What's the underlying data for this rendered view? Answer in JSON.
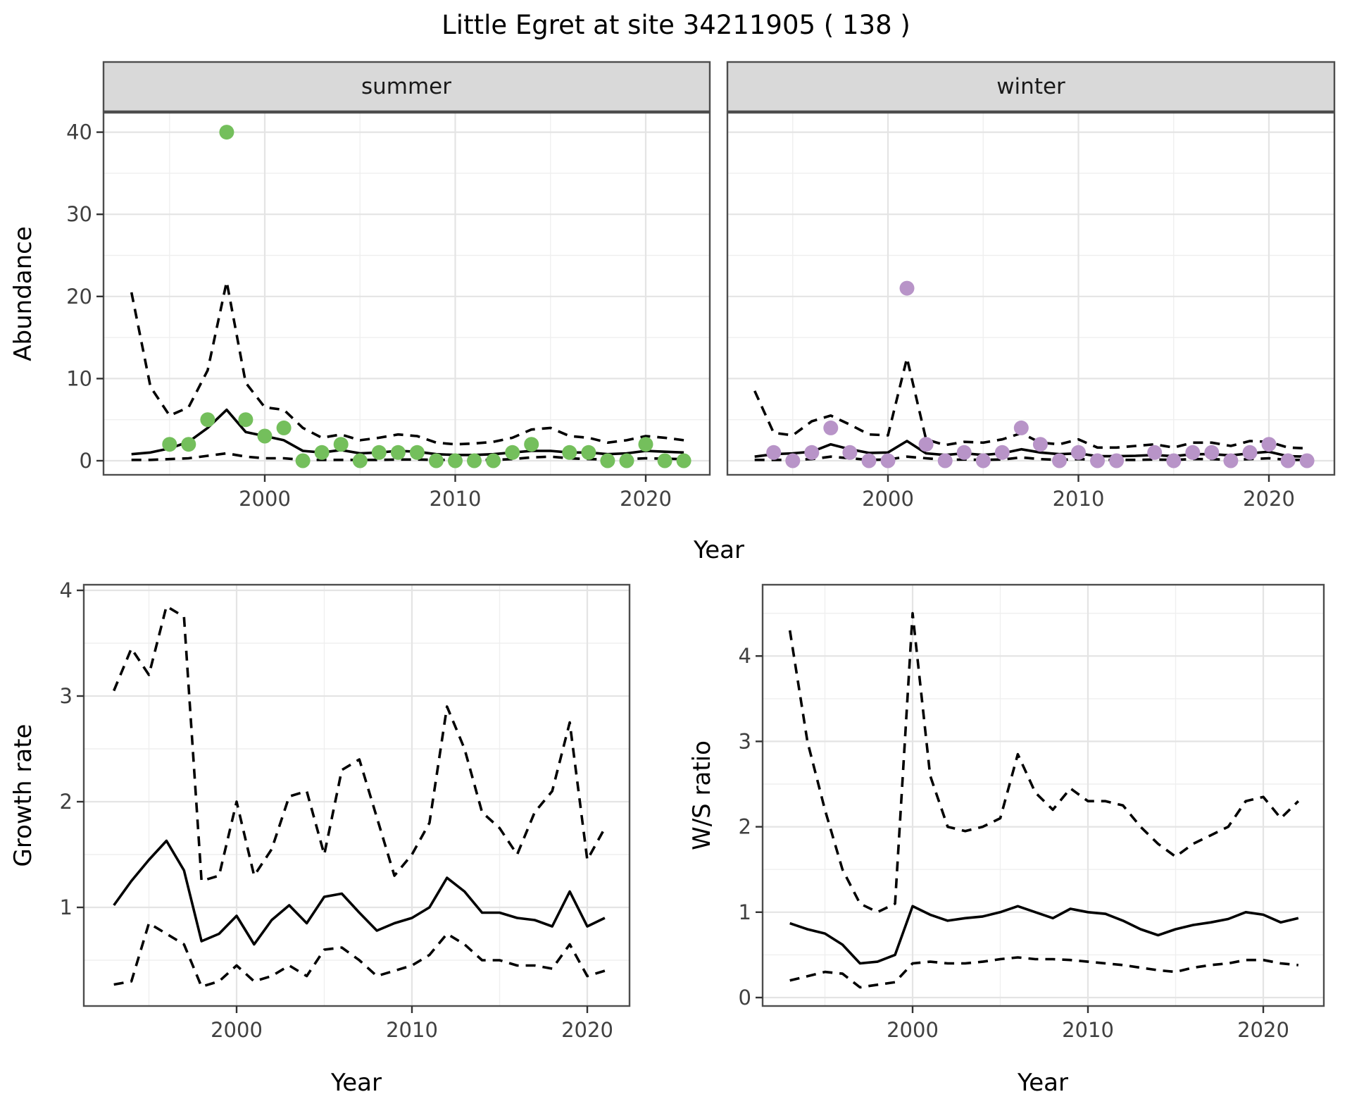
{
  "title": "Little Egret at site 34211905 ( 138 )",
  "figure": {
    "background": "#ffffff",
    "grid": true,
    "legend": "none"
  },
  "colors": {
    "summer_point": "#74bf5c",
    "winter_point": "#b894c8",
    "line": "#000000",
    "strip_background": "#d9d9d9",
    "panel_border": "#4d4d4d",
    "grid": "#e4e4e4"
  },
  "chart_data": [
    {
      "id": "abundance_summer",
      "type": "scatter",
      "facet": "summer",
      "xlabel": "Year",
      "ylabel": "Abundance",
      "x_ticks": [
        2000,
        2010,
        2020
      ],
      "x_minor": [
        1995,
        2005,
        2015
      ],
      "y_ticks": [
        0,
        10,
        20,
        30,
        40
      ],
      "y_minor": [
        5,
        15,
        25,
        35
      ],
      "xlim": [
        1991.5,
        2023.5
      ],
      "ylim": [
        -1.7,
        42.4
      ],
      "points": {
        "x": [
          1995,
          1996,
          1997,
          1998,
          1999,
          2000,
          2001,
          2002,
          2003,
          2004,
          2005,
          2006,
          2007,
          2008,
          2009,
          2010,
          2011,
          2012,
          2013,
          2014,
          2016,
          2017,
          2018,
          2019,
          2020,
          2021,
          2022
        ],
        "y": [
          2,
          2,
          5,
          40,
          5,
          3,
          4,
          0,
          1,
          2,
          0,
          1,
          1,
          1,
          0,
          0,
          0,
          0,
          1,
          2,
          1,
          1,
          0,
          0,
          2,
          0,
          0
        ]
      },
      "mean_line": {
        "x": [
          1993,
          1994,
          1995,
          1996,
          1997,
          1998,
          1999,
          2000,
          2001,
          2002,
          2003,
          2004,
          2005,
          2006,
          2007,
          2008,
          2009,
          2010,
          2011,
          2012,
          2013,
          2014,
          2015,
          2016,
          2017,
          2018,
          2019,
          2020,
          2021,
          2022
        ],
        "y": [
          0.8,
          1.0,
          1.5,
          2.3,
          4.0,
          6.2,
          3.5,
          3.0,
          2.5,
          1.2,
          1.0,
          1.3,
          0.9,
          1.0,
          1.2,
          1.1,
          0.8,
          0.7,
          0.7,
          0.8,
          1.0,
          1.2,
          1.2,
          1.0,
          1.0,
          0.8,
          0.9,
          1.2,
          1.1,
          1.0
        ]
      },
      "upper_ci": {
        "x": [
          1993,
          1994,
          1995,
          1996,
          1997,
          1998,
          1999,
          2000,
          2001,
          2002,
          2003,
          2004,
          2005,
          2006,
          2007,
          2008,
          2009,
          2010,
          2011,
          2012,
          2013,
          2014,
          2015,
          2016,
          2017,
          2018,
          2019,
          2020,
          2021,
          2022
        ],
        "y": [
          20.5,
          9.0,
          5.5,
          6.5,
          11,
          21.8,
          9.5,
          6.5,
          6.2,
          4.0,
          2.8,
          3.2,
          2.5,
          2.8,
          3.2,
          3.0,
          2.2,
          2.0,
          2.1,
          2.3,
          2.8,
          3.8,
          4.0,
          3.0,
          2.8,
          2.2,
          2.5,
          3.0,
          2.8,
          2.5
        ]
      },
      "lower_ci": {
        "x": [
          1993,
          1994,
          1995,
          1996,
          1997,
          1998,
          1999,
          2000,
          2001,
          2002,
          2003,
          2004,
          2005,
          2006,
          2007,
          2008,
          2009,
          2010,
          2011,
          2012,
          2013,
          2014,
          2015,
          2016,
          2017,
          2018,
          2019,
          2020,
          2021,
          2022
        ],
        "y": [
          0.1,
          0.1,
          0.2,
          0.3,
          0.6,
          0.9,
          0.5,
          0.3,
          0.3,
          0.1,
          0.1,
          0.1,
          0.1,
          0.1,
          0.15,
          0.15,
          0.1,
          0.1,
          0.1,
          0.1,
          0.2,
          0.4,
          0.5,
          0.3,
          0.2,
          0.15,
          0.2,
          0.3,
          0.25,
          0.2
        ]
      }
    },
    {
      "id": "abundance_winter",
      "type": "scatter",
      "facet": "winter",
      "xlabel": "Year",
      "ylabel": "Abundance",
      "x_ticks": [
        2000,
        2010,
        2020
      ],
      "x_minor": [
        1995,
        2005,
        2015
      ],
      "y_ticks": [
        0,
        10,
        20,
        30,
        40
      ],
      "y_minor": [
        5,
        15,
        25,
        35
      ],
      "xlim": [
        1991.5,
        2023.5
      ],
      "ylim": [
        -1.7,
        42.4
      ],
      "points": {
        "x": [
          1994,
          1995,
          1996,
          1997,
          1998,
          1999,
          2000,
          2001,
          2002,
          2003,
          2004,
          2005,
          2006,
          2007,
          2008,
          2009,
          2010,
          2011,
          2012,
          2014,
          2015,
          2016,
          2017,
          2018,
          2019,
          2020,
          2021,
          2022
        ],
        "y": [
          1,
          0,
          1,
          4,
          1,
          0,
          0,
          21,
          2,
          0,
          1,
          0,
          1,
          4,
          2,
          0,
          1,
          0,
          0,
          1,
          0,
          1,
          1,
          0,
          1,
          2,
          0,
          0
        ]
      },
      "mean_line": {
        "x": [
          1993,
          1994,
          1995,
          1996,
          1997,
          1998,
          1999,
          2000,
          2001,
          2002,
          2003,
          2004,
          2005,
          2006,
          2007,
          2008,
          2009,
          2010,
          2011,
          2012,
          2013,
          2014,
          2015,
          2016,
          2017,
          2018,
          2019,
          2020,
          2021,
          2022
        ],
        "y": [
          0.5,
          0.8,
          0.9,
          1.1,
          2.0,
          1.4,
          0.95,
          1.0,
          2.4,
          0.9,
          0.7,
          0.9,
          0.7,
          0.9,
          1.4,
          1.0,
          0.8,
          0.9,
          0.55,
          0.55,
          0.6,
          0.7,
          0.55,
          0.8,
          0.8,
          0.65,
          0.9,
          1.1,
          0.55,
          0.5
        ]
      },
      "upper_ci": {
        "x": [
          1993,
          1994,
          1995,
          1996,
          1997,
          1998,
          1999,
          2000,
          2001,
          2002,
          2003,
          2004,
          2005,
          2006,
          2007,
          2008,
          2009,
          2010,
          2011,
          2012,
          2013,
          2014,
          2015,
          2016,
          2017,
          2018,
          2019,
          2020,
          2021,
          2022
        ],
        "y": [
          8.5,
          3.4,
          3.1,
          4.8,
          5.5,
          4.4,
          3.2,
          3.1,
          12.5,
          2.6,
          1.9,
          2.3,
          2.2,
          2.6,
          3.35,
          2.2,
          2.0,
          2.6,
          1.6,
          1.6,
          1.8,
          2.0,
          1.6,
          2.2,
          2.2,
          1.8,
          2.4,
          2.3,
          1.6,
          1.5
        ]
      },
      "lower_ci": {
        "x": [
          1993,
          1994,
          1995,
          1996,
          1997,
          1998,
          1999,
          2000,
          2001,
          2002,
          2003,
          2004,
          2005,
          2006,
          2007,
          2008,
          2009,
          2010,
          2011,
          2012,
          2013,
          2014,
          2015,
          2016,
          2017,
          2018,
          2019,
          2020,
          2021,
          2022
        ],
        "y": [
          0.1,
          0.1,
          0.1,
          0.2,
          0.5,
          0.3,
          0.1,
          0.15,
          0.5,
          0.3,
          0.1,
          0.15,
          0.1,
          0.15,
          0.4,
          0.2,
          0.1,
          0.2,
          0.1,
          0.1,
          0.1,
          0.15,
          0.1,
          0.2,
          0.2,
          0.1,
          0.2,
          0.3,
          0.1,
          0.1
        ]
      }
    },
    {
      "id": "growth_rate",
      "type": "line",
      "facet": null,
      "xlabel": "Year",
      "ylabel": "Growth rate",
      "x_ticks": [
        2000,
        2010,
        2020
      ],
      "x_minor": [
        1995,
        2005,
        2015
      ],
      "y_ticks": [
        1,
        2,
        3,
        4
      ],
      "y_minor": [
        0.5,
        1.5,
        2.5,
        3.5
      ],
      "xlim": [
        1991.3,
        2022.4
      ],
      "ylim": [
        0.07,
        4.05
      ],
      "mean_line": {
        "x": [
          1993,
          1994,
          1995,
          1996,
          1997,
          1998,
          1999,
          2000,
          2001,
          2002,
          2003,
          2004,
          2005,
          2006,
          2007,
          2008,
          2009,
          2010,
          2011,
          2012,
          2013,
          2014,
          2015,
          2016,
          2017,
          2018,
          2019,
          2020,
          2021
        ],
        "y": [
          1.02,
          1.25,
          1.45,
          1.63,
          1.35,
          0.68,
          0.75,
          0.92,
          0.65,
          0.88,
          1.02,
          0.85,
          1.1,
          1.13,
          0.95,
          0.78,
          0.85,
          0.9,
          1.0,
          1.28,
          1.15,
          0.95,
          0.95,
          0.9,
          0.88,
          0.82,
          1.15,
          0.82,
          0.9
        ]
      },
      "upper_ci": {
        "x": [
          1993,
          1994,
          1995,
          1996,
          1997,
          1998,
          1999,
          2000,
          2001,
          2002,
          2003,
          2004,
          2005,
          2006,
          2007,
          2008,
          2009,
          2010,
          2011,
          2012,
          2013,
          2014,
          2015,
          2016,
          2017,
          2018,
          2019,
          2020,
          2021
        ],
        "y": [
          3.05,
          3.45,
          3.2,
          3.85,
          3.75,
          1.25,
          1.3,
          2.0,
          1.3,
          1.55,
          2.05,
          2.1,
          1.5,
          2.3,
          2.4,
          1.85,
          1.3,
          1.5,
          1.8,
          2.9,
          2.5,
          1.9,
          1.75,
          1.5,
          1.9,
          2.1,
          2.75,
          1.45,
          1.75
        ]
      },
      "lower_ci": {
        "x": [
          1993,
          1994,
          1995,
          1996,
          1997,
          1998,
          1999,
          2000,
          2001,
          2002,
          2003,
          2004,
          2005,
          2006,
          2007,
          2008,
          2009,
          2010,
          2011,
          2012,
          2013,
          2014,
          2015,
          2016,
          2017,
          2018,
          2019,
          2020,
          2021
        ],
        "y": [
          0.27,
          0.3,
          0.85,
          0.75,
          0.65,
          0.25,
          0.3,
          0.45,
          0.3,
          0.35,
          0.45,
          0.35,
          0.6,
          0.62,
          0.5,
          0.35,
          0.4,
          0.45,
          0.55,
          0.75,
          0.65,
          0.5,
          0.5,
          0.45,
          0.45,
          0.42,
          0.65,
          0.35,
          0.4
        ]
      }
    },
    {
      "id": "ws_ratio",
      "type": "line",
      "facet": null,
      "xlabel": "Year",
      "ylabel": "W/S ratio",
      "x_ticks": [
        2000,
        2010,
        2020
      ],
      "x_minor": [
        1995,
        2005,
        2015
      ],
      "y_ticks": [
        0,
        1,
        2,
        3,
        4
      ],
      "y_minor": [
        0.5,
        1.5,
        2.5,
        3.5,
        4.5
      ],
      "xlim": [
        1991.45,
        2023.4
      ],
      "ylim": [
        -0.1,
        4.83
      ],
      "mean_line": {
        "x": [
          1993,
          1994,
          1995,
          1996,
          1997,
          1998,
          1999,
          2000,
          2001,
          2002,
          2003,
          2004,
          2005,
          2006,
          2007,
          2008,
          2009,
          2010,
          2011,
          2012,
          2013,
          2014,
          2015,
          2016,
          2017,
          2018,
          2019,
          2020,
          2021,
          2022
        ],
        "y": [
          0.87,
          0.8,
          0.75,
          0.62,
          0.4,
          0.42,
          0.5,
          1.07,
          0.97,
          0.9,
          0.93,
          0.95,
          1.0,
          1.07,
          1.0,
          0.93,
          1.04,
          1.0,
          0.98,
          0.9,
          0.8,
          0.73,
          0.8,
          0.85,
          0.88,
          0.92,
          1.0,
          0.97,
          0.88,
          0.93
        ]
      },
      "upper_ci": {
        "x": [
          1993,
          1994,
          1995,
          1996,
          1997,
          1998,
          1999,
          2000,
          2001,
          2002,
          2003,
          2004,
          2005,
          2006,
          2007,
          2008,
          2009,
          2010,
          2011,
          2012,
          2013,
          2014,
          2015,
          2016,
          2017,
          2018,
          2019,
          2020,
          2021,
          2022
        ],
        "y": [
          4.3,
          3.0,
          2.2,
          1.5,
          1.1,
          1.0,
          1.1,
          4.5,
          2.6,
          2.0,
          1.95,
          2.0,
          2.1,
          2.85,
          2.4,
          2.2,
          2.45,
          2.3,
          2.3,
          2.25,
          2.0,
          1.8,
          1.65,
          1.8,
          1.9,
          2.0,
          2.3,
          2.35,
          2.1,
          2.3
        ]
      },
      "lower_ci": {
        "x": [
          1993,
          1994,
          1995,
          1996,
          1997,
          1998,
          1999,
          2000,
          2001,
          2002,
          2003,
          2004,
          2005,
          2006,
          2007,
          2008,
          2009,
          2010,
          2011,
          2012,
          2013,
          2014,
          2015,
          2016,
          2017,
          2018,
          2019,
          2020,
          2021,
          2022
        ],
        "y": [
          0.2,
          0.25,
          0.3,
          0.28,
          0.12,
          0.15,
          0.18,
          0.4,
          0.42,
          0.4,
          0.4,
          0.42,
          0.45,
          0.47,
          0.45,
          0.45,
          0.44,
          0.42,
          0.4,
          0.38,
          0.35,
          0.32,
          0.3,
          0.35,
          0.38,
          0.4,
          0.44,
          0.44,
          0.4,
          0.38
        ]
      }
    }
  ]
}
